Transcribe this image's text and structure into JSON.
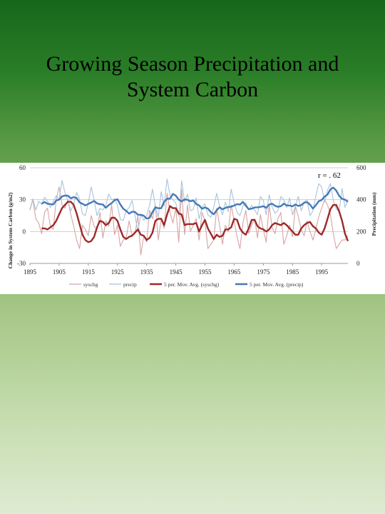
{
  "slide": {
    "title_line1": "Growing Season Precipitation and",
    "title_line2": "System Carbon"
  },
  "chart_data": {
    "type": "line",
    "title": "",
    "annotation": "r = . 62",
    "ylabel_left": "Change in System Carbon (g/m2)",
    "ylabel_right": "Precipitation (mm)",
    "ylim_left": [
      -30,
      60
    ],
    "ylim_right": [
      0,
      600
    ],
    "yticks_left": [
      "60",
      "30",
      "0",
      "-30"
    ],
    "yticks_right": [
      "600",
      "400",
      "200",
      "0"
    ],
    "xticks": [
      "1895",
      "1905",
      "1915",
      "1925",
      "1935",
      "1945",
      "1955",
      "1965",
      "1975",
      "1985",
      "1995"
    ],
    "x": [
      1895,
      1896,
      1897,
      1898,
      1899,
      1900,
      1901,
      1902,
      1903,
      1904,
      1905,
      1906,
      1907,
      1908,
      1909,
      1910,
      1911,
      1912,
      1913,
      1914,
      1915,
      1916,
      1917,
      1918,
      1919,
      1920,
      1921,
      1922,
      1923,
      1924,
      1925,
      1926,
      1927,
      1928,
      1929,
      1930,
      1931,
      1932,
      1933,
      1934,
      1935,
      1936,
      1937,
      1938,
      1939,
      1940,
      1941,
      1942,
      1943,
      1944,
      1945,
      1946,
      1947,
      1948,
      1949,
      1950,
      1951,
      1952,
      1953,
      1954,
      1955,
      1956,
      1957,
      1958,
      1959,
      1960,
      1961,
      1962,
      1963,
      1964,
      1965,
      1966,
      1967,
      1968,
      1969,
      1970,
      1971,
      1972,
      1973,
      1974,
      1975,
      1976,
      1977,
      1978,
      1979,
      1980,
      1981,
      1982,
      1983,
      1984,
      1985,
      1986,
      1987,
      1988,
      1989,
      1990,
      1991,
      1992,
      1993,
      1994,
      1995,
      1996,
      1997,
      1998,
      1999,
      2000,
      2001,
      2002,
      2003,
      2004
    ],
    "legend_position": "bottom",
    "series": [
      {
        "name": "syschg",
        "axis": "left",
        "color": "#d9a3a3",
        "values": [
          20,
          30,
          12,
          8,
          -2,
          18,
          22,
          5,
          2,
          30,
          42,
          25,
          22,
          30,
          16,
          5,
          -8,
          -16,
          6,
          2,
          -4,
          15,
          5,
          2,
          18,
          -6,
          10,
          5,
          25,
          -3,
          6,
          -14,
          -8,
          -6,
          10,
          -4,
          -2,
          15,
          -22,
          -4,
          -10,
          20,
          12,
          25,
          -8,
          12,
          3,
          36,
          18,
          8,
          22,
          -10,
          40,
          -3,
          25,
          0,
          6,
          12,
          -8,
          18,
          10,
          -16,
          -12,
          -8,
          22,
          6,
          -12,
          6,
          0,
          25,
          10,
          -5,
          -16,
          8,
          20,
          -2,
          6,
          12,
          -6,
          16,
          2,
          -10,
          25,
          4,
          -2,
          12,
          18,
          -12,
          -4,
          6,
          -5,
          24,
          14,
          2,
          -4,
          10,
          0,
          -8,
          2,
          14,
          22,
          30,
          25,
          16,
          -2,
          -16,
          -12,
          -8,
          -8,
          -4
        ]
      },
      {
        "name": "precip",
        "axis": "right",
        "color": "#a8c3dc",
        "values": [
          340,
          405,
          335,
          390,
          370,
          415,
          390,
          350,
          390,
          425,
          400,
          520,
          445,
          395,
          330,
          370,
          445,
          405,
          310,
          300,
          380,
          480,
          400,
          300,
          345,
          335,
          365,
          435,
          400,
          405,
          365,
          275,
          270,
          330,
          350,
          395,
          300,
          200,
          310,
          270,
          300,
          365,
          465,
          360,
          290,
          450,
          360,
          530,
          430,
          400,
          380,
          295,
          520,
          385,
          435,
          330,
          340,
          410,
          280,
          350,
          375,
          305,
          290,
          350,
          440,
          360,
          305,
          385,
          325,
          465,
          380,
          320,
          300,
          360,
          380,
          335,
          365,
          335,
          305,
          420,
          395,
          305,
          430,
          355,
          315,
          330,
          420,
          400,
          350,
          410,
          305,
          360,
          420,
          330,
          385,
          400,
          300,
          330,
          425,
          500,
          480,
          385,
          460,
          500,
          395,
          340,
          330,
          470,
          350,
          400
        ]
      },
      {
        "name": "5 per. Mov. Avg. (syschg)",
        "axis": "left",
        "color": "#9c2a2a",
        "values": [
          null,
          null,
          null,
          null,
          3,
          3,
          2,
          4,
          6,
          10,
          16,
          22,
          25,
          28,
          28,
          25,
          17,
          7,
          -3,
          -8,
          -10,
          -9,
          -5,
          4,
          10,
          9,
          6,
          8,
          13,
          13,
          10,
          2,
          -5,
          -7,
          -5,
          -4,
          -1,
          2,
          -3,
          -4,
          -8,
          -6,
          -1,
          10,
          12,
          12,
          6,
          16,
          24,
          22,
          22,
          17,
          16,
          6,
          7,
          7,
          7,
          8,
          0,
          6,
          11,
          3,
          -2,
          -7,
          -3,
          -5,
          -4,
          2,
          2,
          4,
          12,
          11,
          3,
          -1,
          -3,
          3,
          11,
          11,
          5,
          3,
          2,
          0,
          2,
          6,
          8,
          7,
          6,
          8,
          6,
          3,
          0,
          -3,
          -3,
          3,
          6,
          8,
          9,
          5,
          3,
          -1,
          -3,
          3,
          12,
          21,
          25,
          25,
          19,
          10,
          -2,
          -9
        ]
      },
      {
        "name": "5 per. Mov. Avg. (precip)",
        "axis": "right",
        "color": "#4679b5",
        "values": [
          null,
          null,
          null,
          null,
          375,
          385,
          375,
          372,
          370,
          395,
          400,
          420,
          426,
          425,
          409,
          416,
          410,
          383,
          374,
          364,
          373,
          382,
          392,
          377,
          371,
          370,
          349,
          366,
          378,
          397,
          402,
          370,
          343,
          330,
          312,
          324,
          323,
          306,
          305,
          299,
          281,
          286,
          322,
          352,
          346,
          346,
          386,
          406,
          406,
          436,
          425,
          400,
          389,
          402,
          399,
          390,
          395,
          372,
          364,
          343,
          351,
          344,
          322,
          308,
          334,
          352,
          340,
          348,
          354,
          356,
          363,
          372,
          369,
          386,
          362,
          340,
          344,
          351,
          352,
          354,
          359,
          349,
          369,
          375,
          362,
          355,
          359,
          375,
          364,
          363,
          358,
          370,
          361,
          366,
          381,
          384,
          369,
          344,
          366,
          390,
          398,
          419,
          432,
          464,
          476,
          457,
          424,
          405,
          400,
          387
        ]
      }
    ]
  }
}
